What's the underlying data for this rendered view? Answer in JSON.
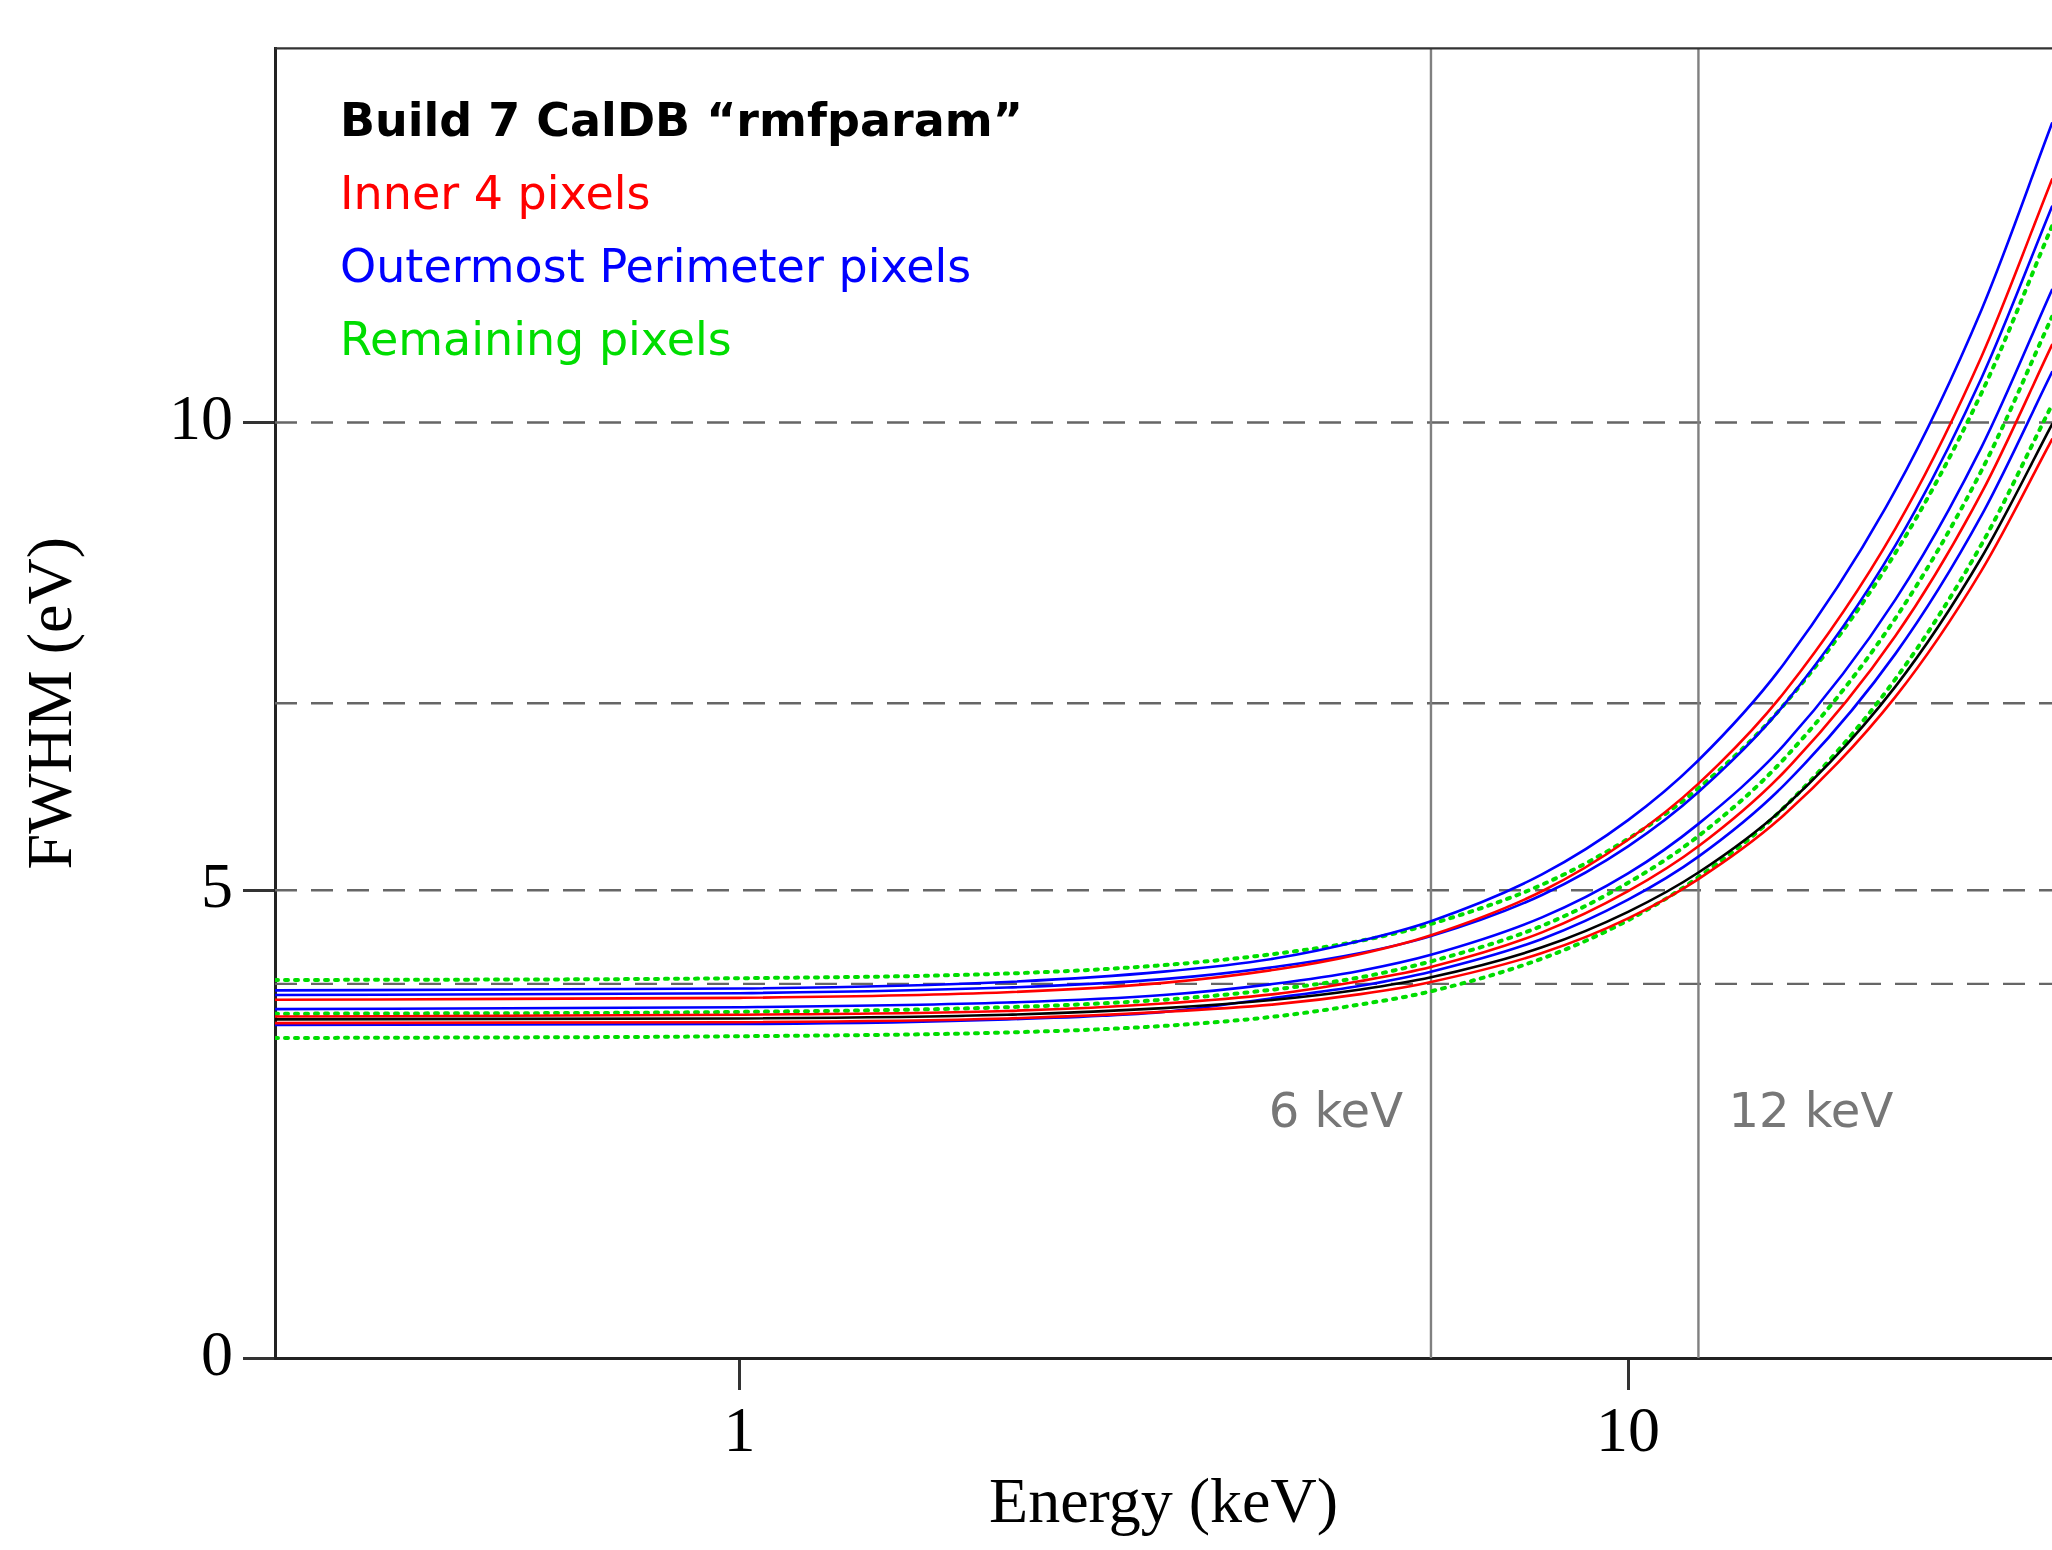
{
  "chart_data": {
    "type": "line",
    "xlabel": "Energy (keV)",
    "ylabel": "FWHM (eV)",
    "log": "x",
    "grid": false,
    "legend": "top left",
    "marker": "none",
    "xlim": [
      0.3,
      30
    ],
    "xticks": [
      1,
      10
    ],
    "ylim": [
      0,
      14
    ],
    "yticks": [
      0,
      5,
      10
    ],
    "x": [
      0.3,
      1,
      2,
      3,
      4,
      5,
      6,
      8,
      10,
      12,
      15,
      20,
      25,
      30
    ],
    "series": [
      {
        "name": "Build 7 CalDB “rmfparam”",
        "color": "#000000",
        "values": [
          3.62,
          3.63,
          3.67,
          3.74,
          3.83,
          3.94,
          4.07,
          4.39,
          4.77,
          5.19,
          5.89,
          7.18,
          8.56,
          9.98
        ]
      },
      {
        "name": "Inner 4 pixels",
        "color": "#ff0000",
        "values": [
          3.83,
          3.85,
          3.91,
          4.01,
          4.15,
          4.32,
          4.52,
          4.99,
          5.54,
          6.14,
          7.12,
          8.87,
          10.71,
          12.6
        ]
      },
      {
        "color": "#ff0000",
        "values": [
          3.65,
          3.67,
          3.71,
          3.79,
          3.89,
          4.03,
          4.18,
          4.55,
          4.99,
          5.47,
          6.27,
          7.72,
          9.25,
          10.83
        ]
      },
      {
        "color": "#ff0000",
        "values": [
          3.58,
          3.59,
          3.63,
          3.7,
          3.78,
          3.89,
          4.02,
          4.33,
          4.7,
          5.12,
          5.81,
          7.07,
          8.42,
          9.82
        ]
      },
      {
        "name": "Outermost Perimeter pixels",
        "color": "#0000ff",
        "values": [
          3.93,
          3.95,
          4.02,
          4.13,
          4.27,
          4.46,
          4.67,
          5.17,
          5.75,
          6.39,
          7.43,
          9.28,
          11.21,
          13.2
        ]
      },
      {
        "color": "#0000ff",
        "values": [
          3.88,
          3.9,
          3.96,
          4.05,
          4.18,
          4.33,
          4.51,
          4.95,
          5.47,
          6.05,
          6.99,
          8.69,
          10.48,
          12.31
        ]
      },
      {
        "color": "#0000ff",
        "values": [
          3.73,
          3.75,
          3.8,
          3.88,
          4.0,
          4.14,
          4.31,
          4.71,
          5.18,
          5.71,
          6.56,
          8.11,
          9.74,
          11.42
        ]
      },
      {
        "color": "#0000ff",
        "values": [
          3.56,
          3.57,
          3.62,
          3.7,
          3.85,
          3.98,
          4.13,
          4.48,
          4.9,
          5.36,
          6.13,
          7.53,
          9.01,
          10.54
        ]
      },
      {
        "name": "Remaining pixels",
        "color": "#00dd00",
        "line_style": "dotted",
        "values": [
          4.04,
          4.06,
          4.11,
          4.2,
          4.32,
          4.46,
          4.64,
          5.06,
          5.55,
          6.09,
          6.99,
          8.61,
          10.32,
          12.1
        ]
      },
      {
        "color": "#00dd00",
        "line_style": "dotted",
        "values": [
          3.68,
          3.7,
          3.75,
          3.83,
          3.94,
          4.07,
          4.24,
          4.62,
          5.08,
          5.58,
          6.41,
          7.91,
          9.49,
          11.13
        ]
      },
      {
        "color": "#00dd00",
        "line_style": "dotted",
        "values": [
          3.42,
          3.44,
          3.48,
          3.55,
          3.65,
          3.78,
          3.92,
          4.27,
          4.68,
          5.14,
          5.89,
          7.26,
          8.7,
          10.19
        ]
      }
    ],
    "ref_lines": [
      {
        "axis": "y",
        "value": 4,
        "line_style": "dashed",
        "color": "#666666"
      },
      {
        "axis": "y",
        "value": 5,
        "line_style": "dashed",
        "color": "#666666"
      },
      {
        "axis": "y",
        "value": 7,
        "line_style": "dashed",
        "color": "#666666"
      },
      {
        "axis": "y",
        "value": 10,
        "line_style": "dashed",
        "color": "#666666"
      },
      {
        "axis": "x",
        "value": 6,
        "label": "6 keV",
        "line_style": "solid",
        "color": "#808080"
      },
      {
        "axis": "x",
        "value": 12,
        "label": "12 keV",
        "line_style": "solid",
        "color": "#808080"
      }
    ]
  }
}
